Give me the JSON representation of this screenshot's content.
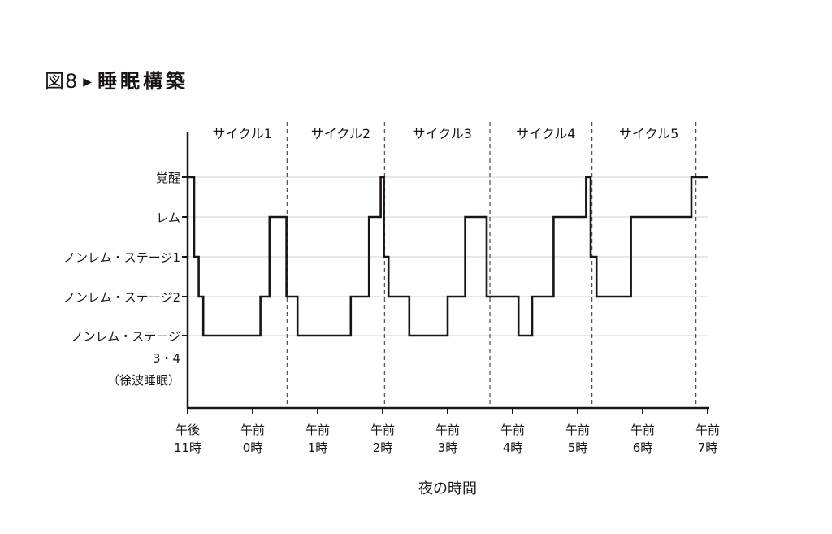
{
  "figure": {
    "prefix": "図8",
    "arrow": "▶",
    "title": "睡眠構築"
  },
  "chart_data": {
    "type": "line",
    "step": true,
    "title": "睡眠構築",
    "xlabel": "夜の時間",
    "ylabel": "",
    "x_unit": "hours after 11 PM",
    "xlim": [
      0,
      8
    ],
    "x_ticks": [
      {
        "value": 0,
        "line1": "午後",
        "line2": "11時"
      },
      {
        "value": 1,
        "line1": "午前",
        "line2": "0時"
      },
      {
        "value": 2,
        "line1": "午前",
        "line2": "1時"
      },
      {
        "value": 3,
        "line1": "午前",
        "line2": "2時"
      },
      {
        "value": 4,
        "line1": "午前",
        "line2": "3時"
      },
      {
        "value": 5,
        "line1": "午前",
        "line2": "4時"
      },
      {
        "value": 6,
        "line1": "午前",
        "line2": "5時"
      },
      {
        "value": 7,
        "line1": "午前",
        "line2": "6時"
      },
      {
        "value": 8,
        "line1": "午前",
        "line2": "7時"
      }
    ],
    "y_levels": [
      {
        "value": 4,
        "label": [
          "覚醒"
        ]
      },
      {
        "value": 3,
        "label": [
          "レム"
        ]
      },
      {
        "value": 2,
        "label": [
          "ノンレム・ステージ1"
        ]
      },
      {
        "value": 1,
        "label": [
          "ノンレム・ステージ2"
        ]
      },
      {
        "value": 0,
        "label": [
          "ノンレム・ステージ",
          "3・4",
          "（徐波睡眠）"
        ]
      }
    ],
    "grid": true,
    "cycles": [
      {
        "label": "サイクル1",
        "start": 0,
        "end": 1.53
      },
      {
        "label": "サイクル2",
        "start": 1.53,
        "end": 3.03
      },
      {
        "label": "サイクル3",
        "start": 3.03,
        "end": 4.65
      },
      {
        "label": "サイクル4",
        "start": 4.65,
        "end": 6.22
      },
      {
        "label": "サイクル5",
        "start": 6.22,
        "end": 7.82
      }
    ],
    "series": [
      {
        "name": "sleep stage",
        "color": "#1a1414",
        "steps": [
          {
            "x": 0,
            "y": 4
          },
          {
            "x": 0.1,
            "y": 2
          },
          {
            "x": 0.17,
            "y": 1
          },
          {
            "x": 0.24,
            "y": 0
          },
          {
            "x": 1.12,
            "y": 1
          },
          {
            "x": 1.26,
            "y": 3
          },
          {
            "x": 1.52,
            "y": 1
          },
          {
            "x": 1.69,
            "y": 0
          },
          {
            "x": 2.51,
            "y": 1
          },
          {
            "x": 2.79,
            "y": 3
          },
          {
            "x": 2.97,
            "y": 4
          },
          {
            "x": 3.02,
            "y": 2
          },
          {
            "x": 3.09,
            "y": 1
          },
          {
            "x": 3.41,
            "y": 0
          },
          {
            "x": 4.0,
            "y": 1
          },
          {
            "x": 4.27,
            "y": 3
          },
          {
            "x": 4.6,
            "y": 1
          },
          {
            "x": 5.09,
            "y": 0
          },
          {
            "x": 5.3,
            "y": 1
          },
          {
            "x": 5.63,
            "y": 3
          },
          {
            "x": 6.13,
            "y": 4
          },
          {
            "x": 6.2,
            "y": 2
          },
          {
            "x": 6.29,
            "y": 1
          },
          {
            "x": 6.82,
            "y": 3
          },
          {
            "x": 7.75,
            "y": 4
          },
          {
            "x": 8.0,
            "y": 4
          }
        ]
      }
    ]
  }
}
